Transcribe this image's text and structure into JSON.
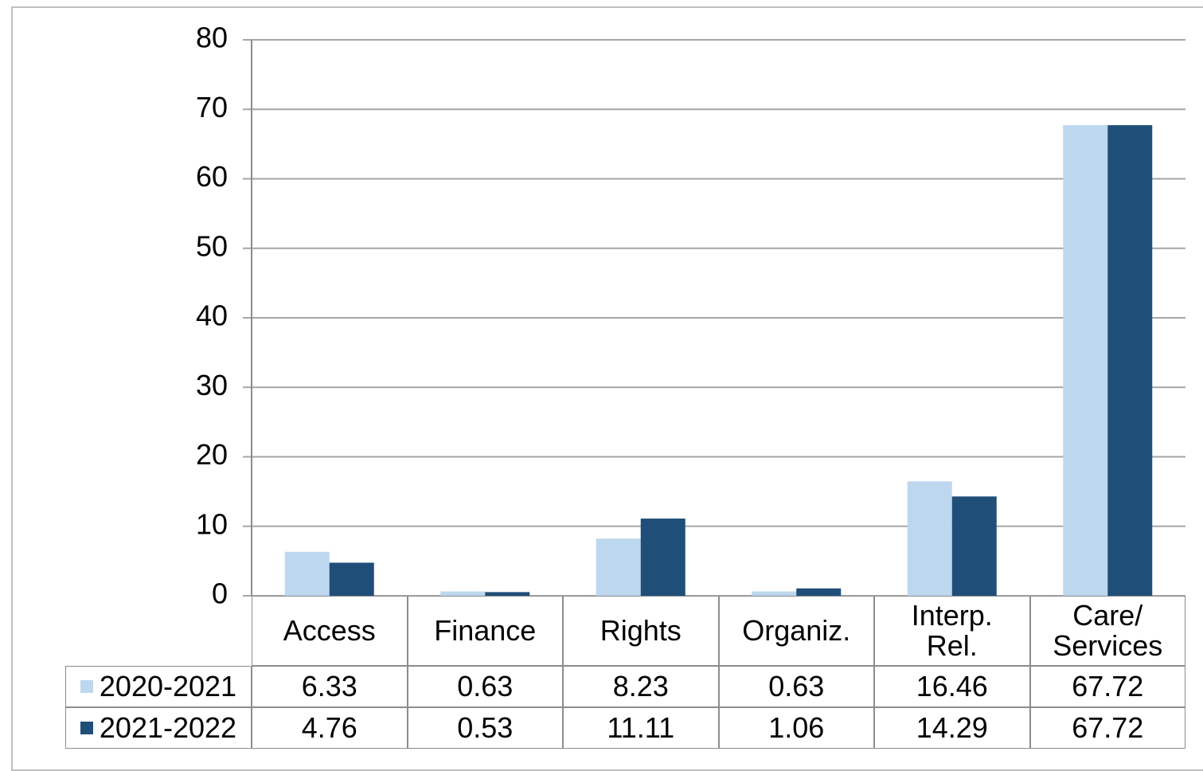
{
  "chart_data": {
    "type": "bar",
    "categories": [
      "Access",
      "Finance",
      "Rights",
      "Organiz.",
      "Interp.\nRel.",
      "Care/\nServices"
    ],
    "series": [
      {
        "name": "2020-2021",
        "color": "#bdd7ee",
        "values": [
          6.33,
          0.63,
          8.23,
          0.63,
          16.46,
          67.72
        ]
      },
      {
        "name": "2021-2022",
        "color": "#1f4e79",
        "values": [
          4.76,
          0.53,
          11.11,
          1.06,
          14.29,
          67.72
        ]
      }
    ],
    "ylim": [
      0,
      80
    ],
    "yticks": [
      0,
      10,
      20,
      30,
      40,
      50,
      60,
      70,
      80
    ],
    "grid": true
  }
}
